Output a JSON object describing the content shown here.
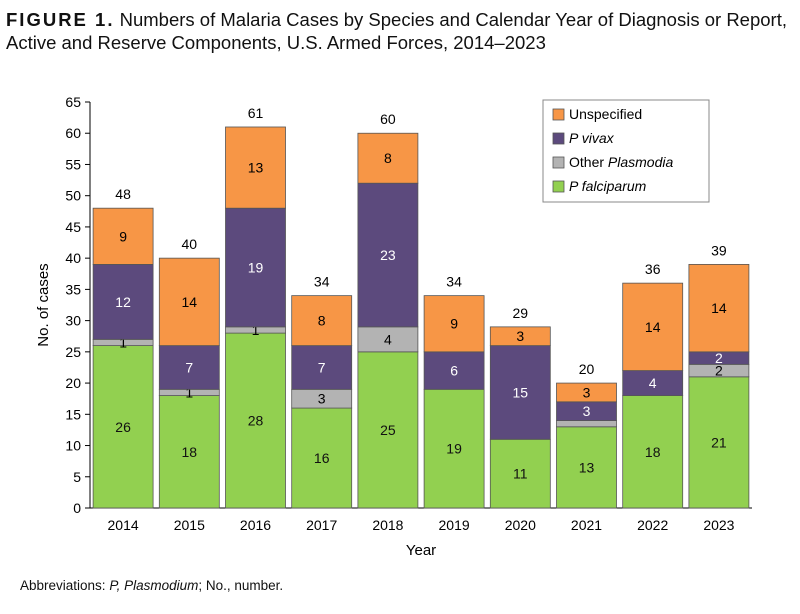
{
  "figure": {
    "label": "FIGURE 1.",
    "title": "Numbers of Malaria Cases by Species and Calendar Year of Diagnosis or Report, Active and Reserve Components, U.S. Armed Forces, 2014–2023"
  },
  "footnote": {
    "prefix": "Abbreviations: ",
    "abbr1": "P,",
    "def1": " Plasmodium",
    "rest": "; No., number."
  },
  "colors": {
    "falciparum": "#92d050",
    "other": "#b3b3b3",
    "vivax": "#5c4a7d",
    "unspecified": "#f79646"
  },
  "chart_data": {
    "type": "bar",
    "stacked": true,
    "xlabel": "Year",
    "ylabel": "No. of cases",
    "ylim": [
      0,
      65
    ],
    "yticks": [
      0,
      5,
      10,
      15,
      20,
      25,
      30,
      35,
      40,
      45,
      50,
      55,
      60,
      65
    ],
    "legend_position": "top-right",
    "categories": [
      "2014",
      "2015",
      "2016",
      "2017",
      "2018",
      "2019",
      "2020",
      "2021",
      "2022",
      "2023"
    ],
    "series": [
      {
        "key": "falciparum",
        "name": "P falciparum",
        "name_prefix": "P",
        "name_rest": "falciparum",
        "name_italic": "all",
        "values": [
          26,
          18,
          28,
          16,
          25,
          19,
          11,
          13,
          18,
          21
        ],
        "labels": [
          "26",
          "18",
          "28",
          "16",
          "25",
          "19",
          "11",
          "13",
          "18",
          "21"
        ]
      },
      {
        "key": "other",
        "name": "Other Plasmodia",
        "name_prefix": "Other",
        "name_rest": "Plasmodia",
        "name_italic": "rest",
        "values": [
          1,
          1,
          1,
          3,
          4,
          0,
          0,
          1,
          0,
          2
        ],
        "labels": [
          "1",
          "1",
          "1",
          "3",
          "4",
          "",
          "",
          "",
          "",
          "2"
        ]
      },
      {
        "key": "vivax",
        "name": "P vivax",
        "name_prefix": "P",
        "name_rest": "vivax",
        "name_italic": "all",
        "values": [
          12,
          7,
          19,
          7,
          23,
          6,
          15,
          3,
          4,
          2
        ],
        "labels": [
          "12",
          "7",
          "19",
          "7",
          "23",
          "6",
          "15",
          "3",
          "4",
          "2"
        ]
      },
      {
        "key": "unspecified",
        "name": "Unspecified",
        "name_prefix": "Unspecified",
        "name_rest": "",
        "name_italic": "none",
        "values": [
          9,
          14,
          13,
          8,
          8,
          9,
          3,
          3,
          14,
          14
        ],
        "labels": [
          "9",
          "14",
          "13",
          "8",
          "8",
          "9",
          "3",
          "3",
          "14",
          "14"
        ]
      }
    ],
    "totals": [
      48,
      40,
      61,
      34,
      60,
      34,
      29,
      20,
      36,
      39
    ]
  }
}
